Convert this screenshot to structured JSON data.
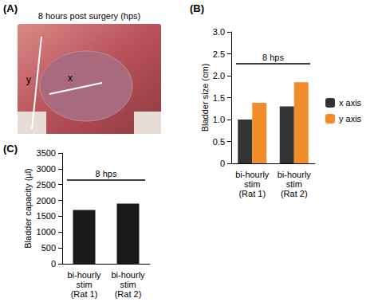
{
  "photo_panel": {
    "label": "(A)",
    "title": "8 hours post surgery (hps)",
    "axis_marks": [
      "x",
      "y"
    ]
  },
  "chart_data": [
    {
      "type": "bar",
      "annotations": [
        "(B)",
        "8 hps"
      ],
      "ylabel": "Bladder size (cm)",
      "categories": [
        "bi-hourly\nstim\n(Rat 1)",
        "bi-hourly\nstim\n(Rat 2)"
      ],
      "series": [
        {
          "name": "x axis",
          "color": "#333333",
          "values": [
            1.0,
            1.3
          ]
        },
        {
          "name": "y axis",
          "color": "#f28c28",
          "values": [
            1.38,
            1.85
          ]
        }
      ],
      "ylim": [
        0,
        3
      ],
      "yticks": [
        0,
        0.5,
        {
          "value": 1,
          "label": "1.0"
        },
        1.5,
        {
          "value": 2,
          "label": "2.0"
        },
        2.5,
        {
          "value": 3,
          "label": "3.0"
        }
      ],
      "grid": false,
      "legend": "right"
    },
    {
      "type": "bar",
      "annotations": [
        "(C)",
        "8 hps"
      ],
      "ylabel": "Bladder capacity (µl)",
      "categories": [
        "bi-hourly\nstim\n(Rat 1)",
        "bi-hourly\nstim\n(Rat 2)"
      ],
      "values": [
        1700,
        1900
      ],
      "color": "#1a1a1a",
      "ylim": [
        0,
        3500
      ],
      "yticks": [
        0,
        500,
        1000,
        1500,
        2000,
        2500,
        3000,
        3500
      ],
      "grid": false
    }
  ]
}
